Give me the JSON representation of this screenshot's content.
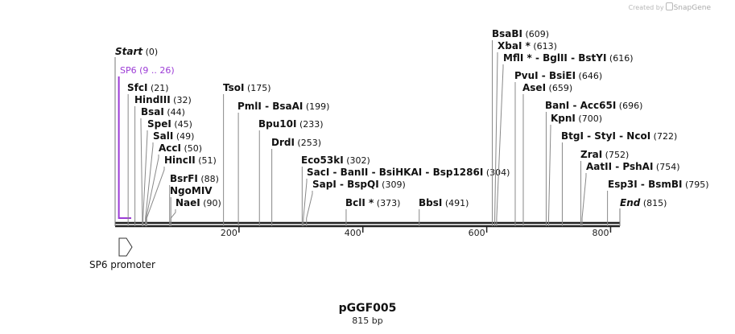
{
  "credit": {
    "prefix": "Created by",
    "brand": "SnapGene"
  },
  "map": {
    "name": "pGGF005",
    "length_label": "815 bp",
    "length": 815,
    "ticks": [
      "200",
      "400",
      "600",
      "800"
    ],
    "tick_values": [
      200,
      400,
      600,
      800
    ],
    "start": {
      "label": "Start",
      "pos": "(0)"
    },
    "end": {
      "label": "End",
      "pos": "(815)"
    },
    "primer": {
      "label": "SP6",
      "range": "(9 .. 26)",
      "start": 9,
      "end": 26,
      "color": "#9c3bd6"
    },
    "feature": {
      "label": "SP6 promoter",
      "start": 0,
      "end": 18
    },
    "sites": [
      {
        "names": [
          "SfcI"
        ],
        "pos": "(21)",
        "site": 21
      },
      {
        "names": [
          "HindIII"
        ],
        "pos": "(32)",
        "site": 32
      },
      {
        "names": [
          "BsaI"
        ],
        "pos": "(44)",
        "site": 44
      },
      {
        "names": [
          "SpeI"
        ],
        "pos": "(45)",
        "site": 45
      },
      {
        "names": [
          "SalI"
        ],
        "pos": "(49)",
        "site": 49
      },
      {
        "names": [
          "AccI"
        ],
        "pos": "(50)",
        "site": 50
      },
      {
        "names": [
          "HincII"
        ],
        "pos": "(51)",
        "site": 51
      },
      {
        "names": [
          "BsrFI"
        ],
        "pos": "(88)",
        "site": 88
      },
      {
        "names": [
          "NgoMIV"
        ],
        "pos": "",
        "site": 90
      },
      {
        "names": [
          "NaeI"
        ],
        "pos": "(90)",
        "site": 90
      },
      {
        "names": [
          "TsoI"
        ],
        "pos": "(175)",
        "site": 175
      },
      {
        "names": [
          "PmlI",
          "BsaAI"
        ],
        "pos": "(199)",
        "site": 199
      },
      {
        "names": [
          "Bpu10I"
        ],
        "pos": "(233)",
        "site": 233
      },
      {
        "names": [
          "DrdI"
        ],
        "pos": "(253)",
        "site": 253
      },
      {
        "names": [
          "Eco53kI"
        ],
        "pos": "(302)",
        "site": 302
      },
      {
        "names": [
          "SacI",
          "BanII",
          "BsiHKAI",
          "Bsp1286I"
        ],
        "pos": "(304)",
        "site": 304
      },
      {
        "names": [
          "SapI",
          "BspQI"
        ],
        "pos": "(309)",
        "site": 309
      },
      {
        "names": [
          "BclI *"
        ],
        "pos": "(373)",
        "site": 373
      },
      {
        "names": [
          "BbsI"
        ],
        "pos": "(491)",
        "site": 491
      },
      {
        "names": [
          "BsaBI"
        ],
        "pos": "(609)",
        "site": 609
      },
      {
        "names": [
          "XbaI *"
        ],
        "pos": "(613)",
        "site": 613
      },
      {
        "names": [
          "MflI *",
          "BglII",
          "BstYI"
        ],
        "pos": "(616)",
        "site": 616
      },
      {
        "names": [
          "PvuI",
          "BsiEI"
        ],
        "pos": "(646)",
        "site": 646
      },
      {
        "names": [
          "AseI"
        ],
        "pos": "(659)",
        "site": 659
      },
      {
        "names": [
          "BanI",
          "Acc65I"
        ],
        "pos": "(696)",
        "site": 696
      },
      {
        "names": [
          "KpnI"
        ],
        "pos": "(700)",
        "site": 700
      },
      {
        "names": [
          "BtgI",
          "StyI",
          "NcoI"
        ],
        "pos": "(722)",
        "site": 722
      },
      {
        "names": [
          "ZraI"
        ],
        "pos": "(752)",
        "site": 752
      },
      {
        "names": [
          "AatII",
          "PshAI"
        ],
        "pos": "(754)",
        "site": 754
      },
      {
        "names": [
          "Esp3I",
          "BsmBI"
        ],
        "pos": "(795)",
        "site": 795
      }
    ]
  }
}
